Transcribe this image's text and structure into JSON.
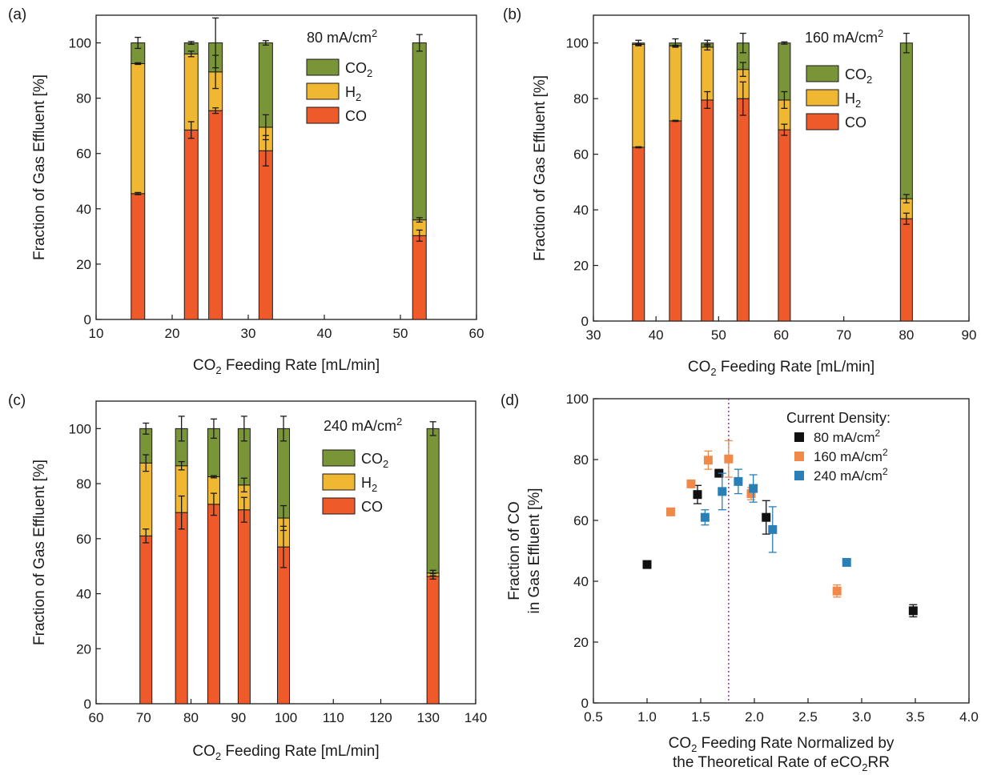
{
  "colors": {
    "co": "#ee5a2a",
    "h2": "#f0b733",
    "co2": "#7a9537",
    "axis": "#1a1a1a",
    "s80": "#111111",
    "s160": "#f08a4b",
    "s240": "#2a7fb6",
    "vline": "#9b30b0"
  },
  "chart_data": [
    {
      "panel": "(a)",
      "type": "bar",
      "stacked": true,
      "annotation": "80 mA/cm²",
      "xlabel": "CO₂ Feeding Rate [mL/min]",
      "ylabel": "Fraction of Gas Effluent [%]",
      "xlim": [
        10,
        60
      ],
      "ylim": [
        0,
        110
      ],
      "xticks": [
        10,
        20,
        30,
        40,
        50,
        60
      ],
      "yticks": [
        0,
        20,
        40,
        60,
        80,
        100
      ],
      "legend": [
        "CO₂",
        "H₂",
        "CO"
      ],
      "legend_position": "top-right",
      "x": [
        15.5,
        22.5,
        25.7,
        32.3,
        52.5
      ],
      "series": [
        {
          "name": "CO",
          "values": [
            45.5,
            68.5,
            75.5,
            61.0,
            30.3
          ],
          "errors": [
            0.4,
            3.0,
            1.0,
            5.5,
            2.0
          ]
        },
        {
          "name": "H₂",
          "values": [
            47.0,
            27.5,
            14.0,
            8.5,
            5.7
          ],
          "errors": [
            0.3,
            1.0,
            6.0,
            4.5,
            0.8
          ]
        },
        {
          "name": "CO₂",
          "values": [
            7.5,
            4.0,
            10.5,
            30.5,
            64.0
          ],
          "errors": [
            2.0,
            0.5,
            9.0,
            0.8,
            3.0
          ]
        }
      ]
    },
    {
      "panel": "(b)",
      "type": "bar",
      "stacked": true,
      "annotation": "160 mA/cm²",
      "xlabel": "CO₂ Feeding Rate [mL/min]",
      "ylabel": "Fraction of Gas Effluent [%]",
      "xlim": [
        30,
        90
      ],
      "ylim": [
        0,
        110
      ],
      "xticks": [
        30,
        40,
        50,
        60,
        70,
        80,
        90
      ],
      "yticks": [
        0,
        20,
        40,
        60,
        80,
        100
      ],
      "legend": [
        "CO₂",
        "H₂",
        "CO"
      ],
      "legend_position": "top-right",
      "x": [
        37.2,
        43.1,
        48.2,
        53.9,
        60.5,
        80.0
      ],
      "series": [
        {
          "name": "CO",
          "values": [
            62.5,
            72.0,
            79.5,
            80.0,
            68.8,
            36.8
          ],
          "errors": [
            0.2,
            0.2,
            3.0,
            6.0,
            2.0,
            2.0
          ]
        },
        {
          "name": "H₂",
          "values": [
            37.0,
            27.0,
            19.0,
            10.5,
            10.7,
            7.2
          ],
          "errors": [
            0.2,
            0.2,
            1.0,
            2.5,
            3.0,
            1.5
          ]
        },
        {
          "name": "CO₂",
          "values": [
            0.5,
            1.0,
            1.5,
            9.5,
            20.5,
            56.0
          ],
          "errors": [
            1.0,
            1.5,
            1.0,
            3.5,
            0.4,
            3.5
          ]
        }
      ]
    },
    {
      "panel": "(c)",
      "type": "bar",
      "stacked": true,
      "annotation": "240 mA/cm²",
      "xlabel": "CO₂ Feeding Rate [mL/min]",
      "ylabel": "Fraction of Gas Effluent [%]",
      "xlim": [
        60,
        140
      ],
      "ylim": [
        0,
        110
      ],
      "xticks": [
        60,
        70,
        80,
        90,
        100,
        110,
        120,
        130,
        140
      ],
      "yticks": [
        0,
        20,
        40,
        60,
        80,
        100
      ],
      "legend": [
        "CO₂",
        "H₂",
        "CO"
      ],
      "legend_position": "top-right",
      "x": [
        70.5,
        78.0,
        84.8,
        91.2,
        99.5,
        131.0
      ],
      "series": [
        {
          "name": "CO",
          "values": [
            61.0,
            69.5,
            72.5,
            70.5,
            57.0,
            46.3
          ],
          "errors": [
            2.5,
            6.0,
            4.0,
            4.5,
            7.5,
            1.0
          ]
        },
        {
          "name": "H₂",
          "values": [
            26.5,
            17.0,
            10.0,
            9.0,
            10.5,
            1.2
          ],
          "errors": [
            3.0,
            1.5,
            0.4,
            2.5,
            4.5,
            1.0
          ]
        },
        {
          "name": "CO₂",
          "values": [
            12.5,
            13.5,
            17.5,
            20.5,
            32.5,
            52.5
          ],
          "errors": [
            2.0,
            4.5,
            3.5,
            4.5,
            4.5,
            2.5
          ]
        }
      ]
    },
    {
      "panel": "(d)",
      "type": "scatter",
      "xlabel": [
        "CO₂ Feeding Rate Normalized by",
        "the Theoretical Rate of eCO₂RR"
      ],
      "ylabel": [
        "Fraction of CO",
        "in Gas Effluent [%]"
      ],
      "xlim": [
        0.5,
        4.0
      ],
      "ylim": [
        0,
        100
      ],
      "xticks": [
        "0.5",
        "1.0",
        "1.5",
        "2.0",
        "2.5",
        "3.0",
        "3.5",
        "4.0"
      ],
      "yticks": [
        0,
        20,
        40,
        60,
        80,
        100
      ],
      "vline": 1.76,
      "legend_title": "Current Density:",
      "legend_position": "top-right",
      "series": [
        {
          "name": "80 mA/cm²",
          "points": [
            {
              "x": 1.0,
              "y": 45.5,
              "e": 0.5
            },
            {
              "x": 1.47,
              "y": 68.5,
              "e": 3.0
            },
            {
              "x": 1.67,
              "y": 75.5,
              "e": 1.0
            },
            {
              "x": 2.11,
              "y": 61.0,
              "e": 5.5
            },
            {
              "x": 3.48,
              "y": 30.3,
              "e": 2.0
            }
          ]
        },
        {
          "name": "160 mA/cm²",
          "points": [
            {
              "x": 1.22,
              "y": 62.8,
              "e": 0.5
            },
            {
              "x": 1.41,
              "y": 72.0,
              "e": 0.5
            },
            {
              "x": 1.57,
              "y": 79.8,
              "e": 3.0
            },
            {
              "x": 1.76,
              "y": 80.2,
              "e": 6.0
            },
            {
              "x": 1.97,
              "y": 68.8,
              "e": 2.0
            },
            {
              "x": 2.77,
              "y": 36.8,
              "e": 2.0
            }
          ]
        },
        {
          "name": "240 mA/cm²",
          "points": [
            {
              "x": 1.54,
              "y": 61.0,
              "e": 2.5
            },
            {
              "x": 1.7,
              "y": 69.5,
              "e": 6.0
            },
            {
              "x": 1.85,
              "y": 72.8,
              "e": 4.0
            },
            {
              "x": 1.99,
              "y": 70.5,
              "e": 4.5
            },
            {
              "x": 2.17,
              "y": 57.0,
              "e": 7.5
            },
            {
              "x": 2.86,
              "y": 46.2,
              "e": 1.0
            }
          ]
        }
      ]
    }
  ]
}
